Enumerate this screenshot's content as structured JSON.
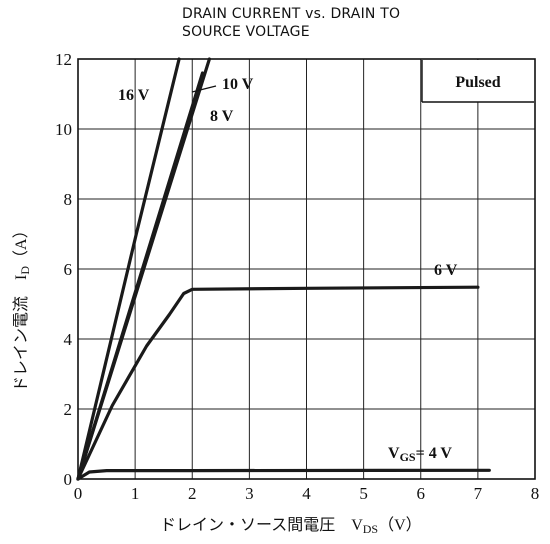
{
  "chart_data": {
    "type": "line",
    "title": "DRAIN CURRENT vs. DRAIN TO SOURCE VOLTAGE",
    "title_lines": [
      "DRAIN CURRENT vs. DRAIN TO",
      "SOURCE VOLTAGE"
    ],
    "ylabel": "ドレイン電流　I_D（A）",
    "ylabel_main": "ドレイン電流　I",
    "ylabel_sub": "D",
    "ylabel_unit": "（A）",
    "xlabel": "ドレイン・ソース間電圧　V_DS（V）",
    "xlabel_main": "ドレイン・ソース間電圧　V",
    "xlabel_sub": "DS",
    "xlabel_unit": "（V）",
    "xlim": [
      0,
      8
    ],
    "ylim": [
      0,
      12
    ],
    "xticks": [
      0,
      1,
      2,
      3,
      4,
      5,
      6,
      7,
      8
    ],
    "yticks": [
      0,
      2,
      4,
      6,
      8,
      10,
      12
    ],
    "grid": true,
    "legend_box": "Pulsed",
    "series": [
      {
        "label": "16 V",
        "points": [
          [
            0,
            0
          ],
          [
            1.02,
            7.0
          ],
          [
            1.77,
            12.0
          ]
        ]
      },
      {
        "label": "10 V",
        "points": [
          [
            0,
            0
          ],
          [
            2.3,
            12.0
          ]
        ]
      },
      {
        "label": "8 V",
        "points": [
          [
            0,
            0
          ],
          [
            2.18,
            11.6
          ]
        ]
      },
      {
        "label": "6 V",
        "points": [
          [
            0,
            0
          ],
          [
            0.6,
            2.1
          ],
          [
            1.2,
            3.8
          ],
          [
            1.6,
            4.7
          ],
          [
            1.85,
            5.3
          ],
          [
            2.0,
            5.42
          ],
          [
            4.0,
            5.45
          ],
          [
            7.0,
            5.48
          ]
        ]
      },
      {
        "label": "4 V",
        "label_prefix": "V",
        "label_sub": "GS",
        "label_suffix": "= 4 V",
        "points": [
          [
            0,
            0
          ],
          [
            0.2,
            0.2
          ],
          [
            0.5,
            0.24
          ],
          [
            2.0,
            0.24
          ],
          [
            7.2,
            0.25
          ]
        ]
      }
    ]
  }
}
